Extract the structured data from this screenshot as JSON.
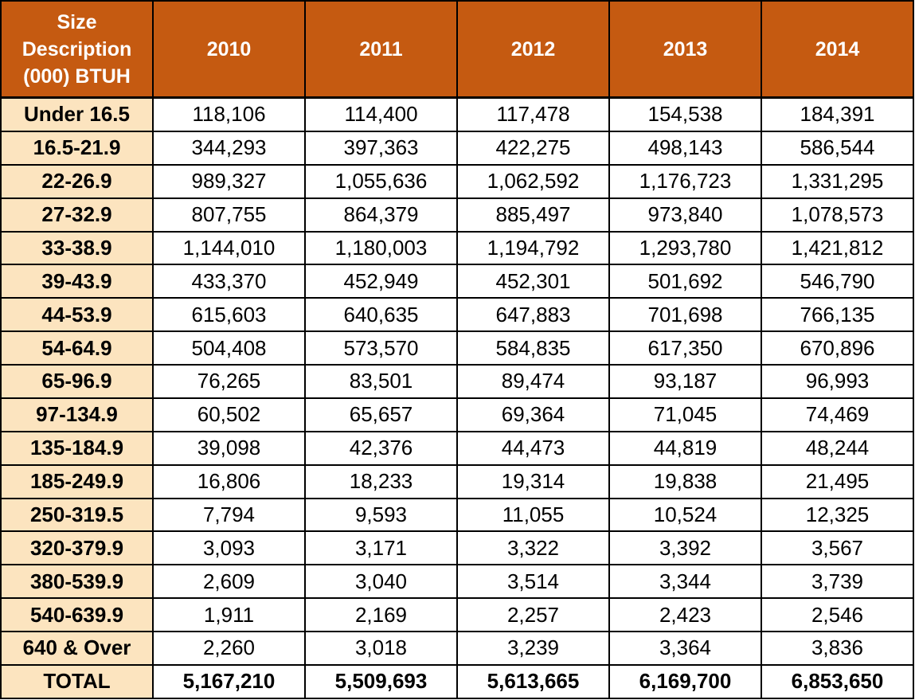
{
  "table": {
    "header": {
      "size_lines": [
        "Size",
        "Description",
        "(000) BTUH"
      ],
      "years": [
        "2010",
        "2011",
        "2012",
        "2013",
        "2014"
      ]
    },
    "rows": [
      {
        "label": "Under 16.5",
        "values": [
          "118,106",
          "114,400",
          "117,478",
          "154,538",
          "184,391"
        ]
      },
      {
        "label": "16.5-21.9",
        "values": [
          "344,293",
          "397,363",
          "422,275",
          "498,143",
          "586,544"
        ]
      },
      {
        "label": "22-26.9",
        "values": [
          "989,327",
          "1,055,636",
          "1,062,592",
          "1,176,723",
          "1,331,295"
        ]
      },
      {
        "label": "27-32.9",
        "values": [
          "807,755",
          "864,379",
          "885,497",
          "973,840",
          "1,078,573"
        ]
      },
      {
        "label": "33-38.9",
        "values": [
          "1,144,010",
          "1,180,003",
          "1,194,792",
          "1,293,780",
          "1,421,812"
        ]
      },
      {
        "label": "39-43.9",
        "values": [
          "433,370",
          "452,949",
          "452,301",
          "501,692",
          "546,790"
        ]
      },
      {
        "label": "44-53.9",
        "values": [
          "615,603",
          "640,635",
          "647,883",
          "701,698",
          "766,135"
        ]
      },
      {
        "label": "54-64.9",
        "values": [
          "504,408",
          "573,570",
          "584,835",
          "617,350",
          "670,896"
        ]
      },
      {
        "label": "65-96.9",
        "values": [
          "76,265",
          "83,501",
          "89,474",
          "93,187",
          "96,993"
        ]
      },
      {
        "label": "97-134.9",
        "values": [
          "60,502",
          "65,657",
          "69,364",
          "71,045",
          "74,469"
        ]
      },
      {
        "label": "135-184.9",
        "values": [
          "39,098",
          "42,376",
          "44,473",
          "44,819",
          "48,244"
        ]
      },
      {
        "label": "185-249.9",
        "values": [
          "16,806",
          "18,233",
          "19,314",
          "19,838",
          "21,495"
        ]
      },
      {
        "label": "250-319.5",
        "values": [
          "7,794",
          "9,593",
          "11,055",
          "10,524",
          "12,325"
        ]
      },
      {
        "label": "320-379.9",
        "values": [
          "3,093",
          "3,171",
          "3,322",
          "3,392",
          "3,567"
        ]
      },
      {
        "label": "380-539.9",
        "values": [
          "2,609",
          "3,040",
          "3,514",
          "3,344",
          "3,739"
        ]
      },
      {
        "label": "540-639.9",
        "values": [
          "1,911",
          "2,169",
          "2,257",
          "2,423",
          "2,546"
        ]
      },
      {
        "label": "640 & Over",
        "values": [
          "2,260",
          "3,018",
          "3,239",
          "3,364",
          "3,836"
        ]
      }
    ],
    "total": {
      "label": "TOTAL",
      "values": [
        "5,167,210",
        "5,509,693",
        "5,613,665",
        "6,169,700",
        "6,853,650"
      ]
    }
  },
  "colors": {
    "header_bg": "#c55a11",
    "header_text": "#ffffff",
    "label_bg": "#fce4bf",
    "border": "#000000"
  }
}
